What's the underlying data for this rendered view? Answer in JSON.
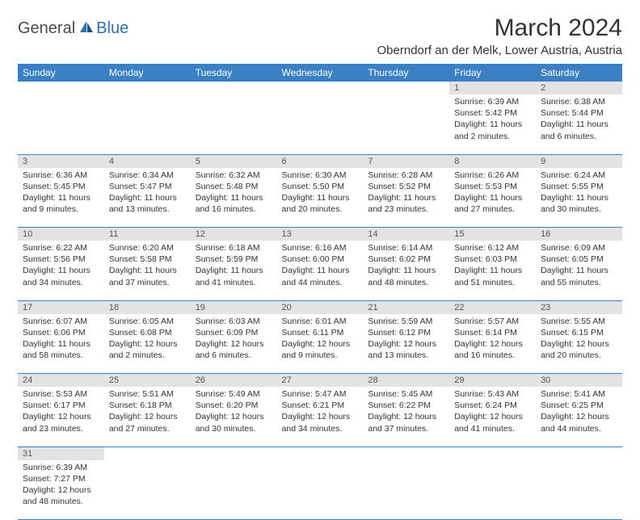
{
  "logo": {
    "part1": "General",
    "part2": "Blue"
  },
  "title": "March 2024",
  "location": "Oberndorf an der Melk, Lower Austria, Austria",
  "colors": {
    "header_bg": "#3b7fc4",
    "header_fg": "#ffffff",
    "daynum_bg": "#e3e3e3",
    "border": "#3b7fc4",
    "logo_gray": "#4a4a4a",
    "logo_blue": "#2d6fb0"
  },
  "typography": {
    "title_fontsize": 30,
    "location_fontsize": 15,
    "weekday_fontsize": 12,
    "daynum_fontsize": 11,
    "cell_fontsize": 10.5
  },
  "weekdays": [
    "Sunday",
    "Monday",
    "Tuesday",
    "Wednesday",
    "Thursday",
    "Friday",
    "Saturday"
  ],
  "weeks": [
    [
      null,
      null,
      null,
      null,
      null,
      {
        "n": "1",
        "sr": "Sunrise: 6:39 AM",
        "ss": "Sunset: 5:42 PM",
        "d1": "Daylight: 11 hours",
        "d2": "and 2 minutes."
      },
      {
        "n": "2",
        "sr": "Sunrise: 6:38 AM",
        "ss": "Sunset: 5:44 PM",
        "d1": "Daylight: 11 hours",
        "d2": "and 6 minutes."
      }
    ],
    [
      {
        "n": "3",
        "sr": "Sunrise: 6:36 AM",
        "ss": "Sunset: 5:45 PM",
        "d1": "Daylight: 11 hours",
        "d2": "and 9 minutes."
      },
      {
        "n": "4",
        "sr": "Sunrise: 6:34 AM",
        "ss": "Sunset: 5:47 PM",
        "d1": "Daylight: 11 hours",
        "d2": "and 13 minutes."
      },
      {
        "n": "5",
        "sr": "Sunrise: 6:32 AM",
        "ss": "Sunset: 5:48 PM",
        "d1": "Daylight: 11 hours",
        "d2": "and 16 minutes."
      },
      {
        "n": "6",
        "sr": "Sunrise: 6:30 AM",
        "ss": "Sunset: 5:50 PM",
        "d1": "Daylight: 11 hours",
        "d2": "and 20 minutes."
      },
      {
        "n": "7",
        "sr": "Sunrise: 6:28 AM",
        "ss": "Sunset: 5:52 PM",
        "d1": "Daylight: 11 hours",
        "d2": "and 23 minutes."
      },
      {
        "n": "8",
        "sr": "Sunrise: 6:26 AM",
        "ss": "Sunset: 5:53 PM",
        "d1": "Daylight: 11 hours",
        "d2": "and 27 minutes."
      },
      {
        "n": "9",
        "sr": "Sunrise: 6:24 AM",
        "ss": "Sunset: 5:55 PM",
        "d1": "Daylight: 11 hours",
        "d2": "and 30 minutes."
      }
    ],
    [
      {
        "n": "10",
        "sr": "Sunrise: 6:22 AM",
        "ss": "Sunset: 5:56 PM",
        "d1": "Daylight: 11 hours",
        "d2": "and 34 minutes."
      },
      {
        "n": "11",
        "sr": "Sunrise: 6:20 AM",
        "ss": "Sunset: 5:58 PM",
        "d1": "Daylight: 11 hours",
        "d2": "and 37 minutes."
      },
      {
        "n": "12",
        "sr": "Sunrise: 6:18 AM",
        "ss": "Sunset: 5:59 PM",
        "d1": "Daylight: 11 hours",
        "d2": "and 41 minutes."
      },
      {
        "n": "13",
        "sr": "Sunrise: 6:16 AM",
        "ss": "Sunset: 6:00 PM",
        "d1": "Daylight: 11 hours",
        "d2": "and 44 minutes."
      },
      {
        "n": "14",
        "sr": "Sunrise: 6:14 AM",
        "ss": "Sunset: 6:02 PM",
        "d1": "Daylight: 11 hours",
        "d2": "and 48 minutes."
      },
      {
        "n": "15",
        "sr": "Sunrise: 6:12 AM",
        "ss": "Sunset: 6:03 PM",
        "d1": "Daylight: 11 hours",
        "d2": "and 51 minutes."
      },
      {
        "n": "16",
        "sr": "Sunrise: 6:09 AM",
        "ss": "Sunset: 6:05 PM",
        "d1": "Daylight: 11 hours",
        "d2": "and 55 minutes."
      }
    ],
    [
      {
        "n": "17",
        "sr": "Sunrise: 6:07 AM",
        "ss": "Sunset: 6:06 PM",
        "d1": "Daylight: 11 hours",
        "d2": "and 58 minutes."
      },
      {
        "n": "18",
        "sr": "Sunrise: 6:05 AM",
        "ss": "Sunset: 6:08 PM",
        "d1": "Daylight: 12 hours",
        "d2": "and 2 minutes."
      },
      {
        "n": "19",
        "sr": "Sunrise: 6:03 AM",
        "ss": "Sunset: 6:09 PM",
        "d1": "Daylight: 12 hours",
        "d2": "and 6 minutes."
      },
      {
        "n": "20",
        "sr": "Sunrise: 6:01 AM",
        "ss": "Sunset: 6:11 PM",
        "d1": "Daylight: 12 hours",
        "d2": "and 9 minutes."
      },
      {
        "n": "21",
        "sr": "Sunrise: 5:59 AM",
        "ss": "Sunset: 6:12 PM",
        "d1": "Daylight: 12 hours",
        "d2": "and 13 minutes."
      },
      {
        "n": "22",
        "sr": "Sunrise: 5:57 AM",
        "ss": "Sunset: 6:14 PM",
        "d1": "Daylight: 12 hours",
        "d2": "and 16 minutes."
      },
      {
        "n": "23",
        "sr": "Sunrise: 5:55 AM",
        "ss": "Sunset: 6:15 PM",
        "d1": "Daylight: 12 hours",
        "d2": "and 20 minutes."
      }
    ],
    [
      {
        "n": "24",
        "sr": "Sunrise: 5:53 AM",
        "ss": "Sunset: 6:17 PM",
        "d1": "Daylight: 12 hours",
        "d2": "and 23 minutes."
      },
      {
        "n": "25",
        "sr": "Sunrise: 5:51 AM",
        "ss": "Sunset: 6:18 PM",
        "d1": "Daylight: 12 hours",
        "d2": "and 27 minutes."
      },
      {
        "n": "26",
        "sr": "Sunrise: 5:49 AM",
        "ss": "Sunset: 6:20 PM",
        "d1": "Daylight: 12 hours",
        "d2": "and 30 minutes."
      },
      {
        "n": "27",
        "sr": "Sunrise: 5:47 AM",
        "ss": "Sunset: 6:21 PM",
        "d1": "Daylight: 12 hours",
        "d2": "and 34 minutes."
      },
      {
        "n": "28",
        "sr": "Sunrise: 5:45 AM",
        "ss": "Sunset: 6:22 PM",
        "d1": "Daylight: 12 hours",
        "d2": "and 37 minutes."
      },
      {
        "n": "29",
        "sr": "Sunrise: 5:43 AM",
        "ss": "Sunset: 6:24 PM",
        "d1": "Daylight: 12 hours",
        "d2": "and 41 minutes."
      },
      {
        "n": "30",
        "sr": "Sunrise: 5:41 AM",
        "ss": "Sunset: 6:25 PM",
        "d1": "Daylight: 12 hours",
        "d2": "and 44 minutes."
      }
    ],
    [
      {
        "n": "31",
        "sr": "Sunrise: 6:39 AM",
        "ss": "Sunset: 7:27 PM",
        "d1": "Daylight: 12 hours",
        "d2": "and 48 minutes."
      },
      null,
      null,
      null,
      null,
      null,
      null
    ]
  ]
}
